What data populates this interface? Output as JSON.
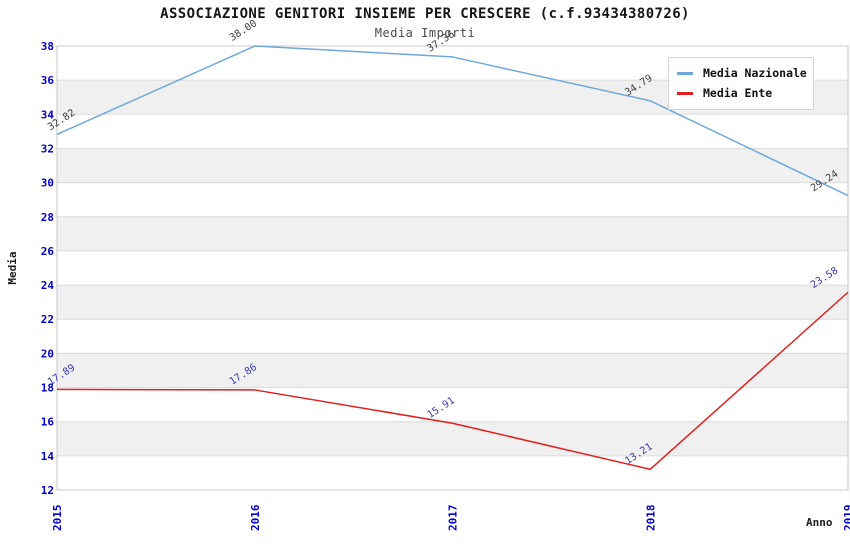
{
  "chart_data": {
    "type": "line",
    "title": "ASSOCIAZIONE GENITORI INSIEME PER CRESCERE (c.f.93434380726)",
    "subtitle": "Media Importi",
    "xlabel": "Anno",
    "ylabel": "Media",
    "categories": [
      "2015",
      "2016",
      "2017",
      "2018",
      "2019"
    ],
    "series": [
      {
        "name": "Media Nazionale",
        "color": "#6FA8DC",
        "label_color": "#3D3D3D",
        "values": [
          32.82,
          38.0,
          37.36,
          34.79,
          29.24
        ],
        "labels": [
          "32.82",
          "38.00",
          "37.36",
          "34.79",
          "29.24"
        ]
      },
      {
        "name": "Media Ente",
        "color": "#E02020",
        "label_color": "#3A3AB0",
        "values": [
          17.89,
          17.86,
          15.91,
          13.21,
          23.58
        ],
        "labels": [
          "17.89",
          "17.86",
          "15.91",
          "13.21",
          "23.58"
        ]
      }
    ],
    "ylim": [
      12,
      38
    ],
    "ytick_step": 2,
    "yticks": [
      12,
      14,
      16,
      18,
      20,
      22,
      24,
      26,
      28,
      30,
      32,
      34,
      36,
      38
    ],
    "grid": "horizontal",
    "alternating_bands": true,
    "legend_position": "top-right",
    "tick_color": "#0000CD",
    "axis_title_color": "#1c1c1c",
    "band_color": "#F0F0F0",
    "grid_color": "#DBDBDB",
    "plot_border_color": "#C8C8C8"
  }
}
